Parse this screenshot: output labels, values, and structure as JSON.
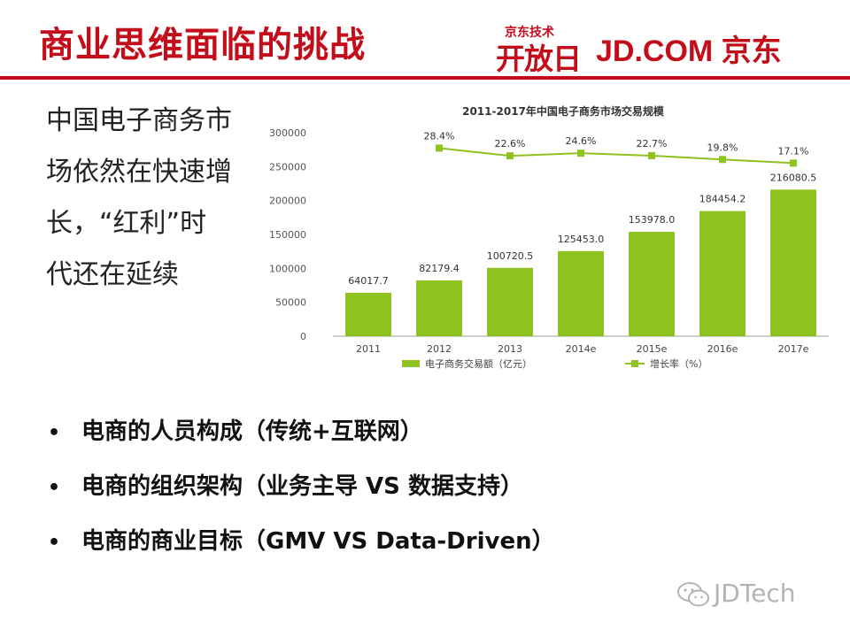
{
  "slide": {
    "title": "商业思维面临的挑战",
    "logo_small": "京东技术",
    "logo_big": "开放日",
    "brand": "JD.COM 京东",
    "lead_lines": [
      "中国电子商务市",
      "场依然在快速增",
      "长，“红利”时",
      "代还在延续"
    ],
    "bullets": [
      "电商的人员构成（传统+互联网）",
      "电商的组织架构（业务主导 VS 数据支持）",
      "电商的商业目标（GMV VS Data-Driven）"
    ],
    "watermark": "JDTech",
    "bullet_glyph": "•"
  },
  "colors": {
    "brand_red": "#c40d1a",
    "bar_green": "#8dc21f",
    "line_green": "#8dc21f"
  },
  "chart_data": {
    "type": "bar",
    "title": "2011-2017年中国电子商务市场交易规模",
    "categories": [
      "2011",
      "2012",
      "2013",
      "2014e",
      "2015e",
      "2016e",
      "2017e"
    ],
    "series": [
      {
        "name": "电子商务交易额（亿元）",
        "type": "bar",
        "values": [
          64017.7,
          82179.4,
          100720.5,
          125453.0,
          153978.0,
          184454.2,
          216080.5
        ],
        "labels": [
          "64017.7",
          "82179.4",
          "100720.5",
          "125453.0",
          "153978.0",
          "184454.2",
          "216080.5"
        ]
      },
      {
        "name": "增长率（%）",
        "type": "line",
        "values": [
          null,
          28.4,
          22.6,
          24.6,
          22.7,
          19.8,
          17.1
        ],
        "labels": [
          "",
          "28.4%",
          "22.6%",
          "24.6%",
          "22.7%",
          "19.8%",
          "17.1%"
        ]
      }
    ],
    "ylim": [
      0,
      300000
    ],
    "yticks": [
      "0",
      "50000",
      "100000",
      "150000",
      "200000",
      "250000",
      "300000"
    ],
    "grid": false,
    "legend": "bottom"
  }
}
